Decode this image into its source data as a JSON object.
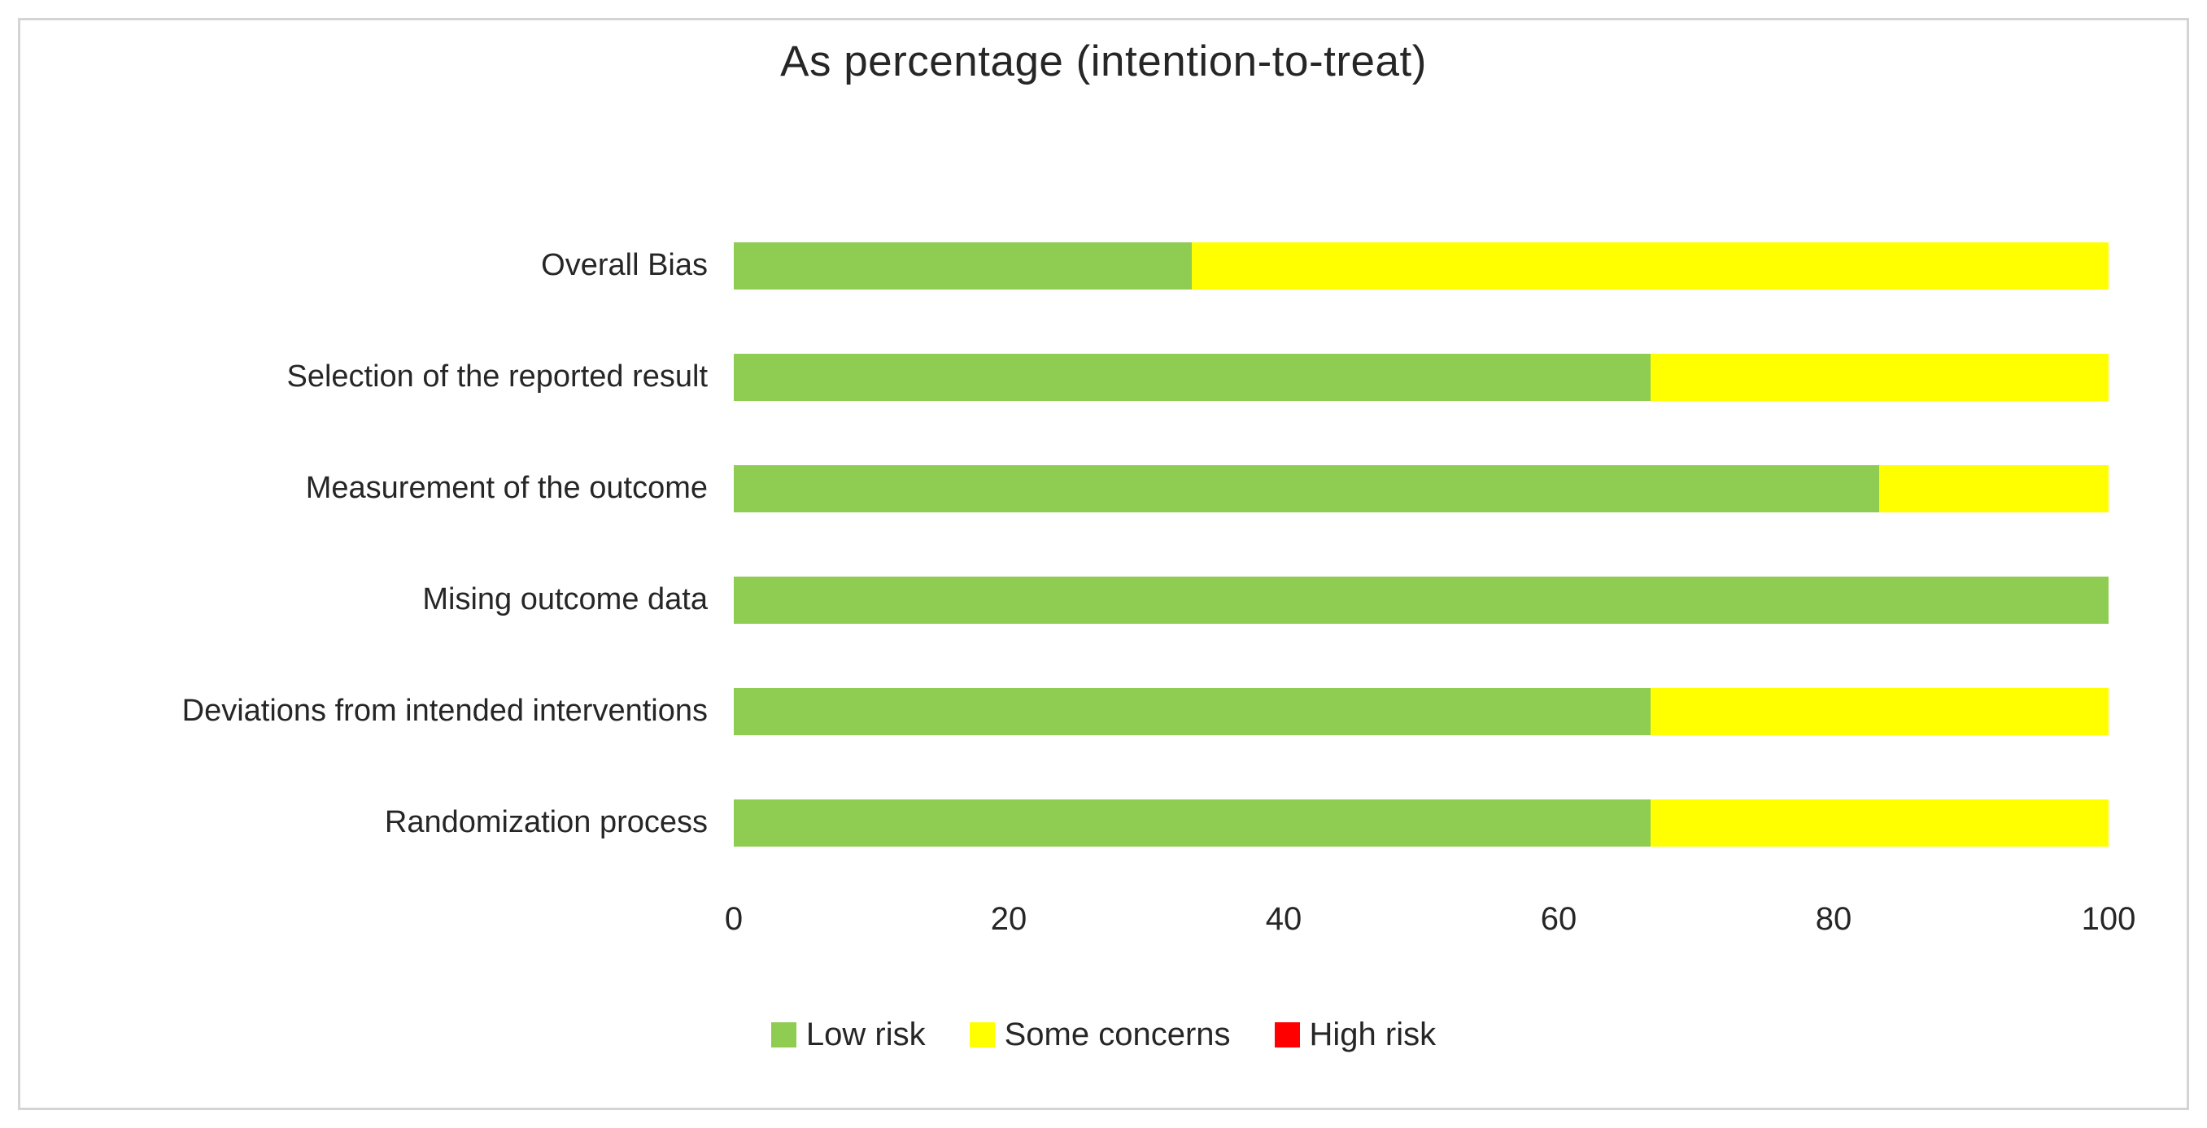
{
  "chart_data": {
    "type": "bar",
    "orientation": "horizontal",
    "stacked": true,
    "title": "As percentage (intention-to-treat)",
    "categories": [
      "Overall Bias",
      "Selection of the reported result",
      "Measurement of the outcome",
      "Mising outcome data",
      "Deviations from intended interventions",
      "Randomization process"
    ],
    "series": [
      {
        "name": "Low risk",
        "color": "#8FCC52",
        "values": [
          33.3,
          66.7,
          83.3,
          100,
          66.7,
          66.7
        ]
      },
      {
        "name": "Some concerns",
        "color": "#FFFF00",
        "values": [
          66.7,
          33.3,
          16.7,
          0,
          33.3,
          33.3
        ]
      },
      {
        "name": "High risk",
        "color": "#FF0000",
        "values": [
          0,
          0,
          0,
          0,
          0,
          0
        ]
      }
    ],
    "xlim": [
      0,
      100
    ],
    "x_ticks": [
      0,
      20,
      40,
      60,
      80,
      100
    ],
    "grid": false,
    "legend_position": "bottom",
    "frame_border_color": "#d4d4d4",
    "text_color": "#262626"
  }
}
